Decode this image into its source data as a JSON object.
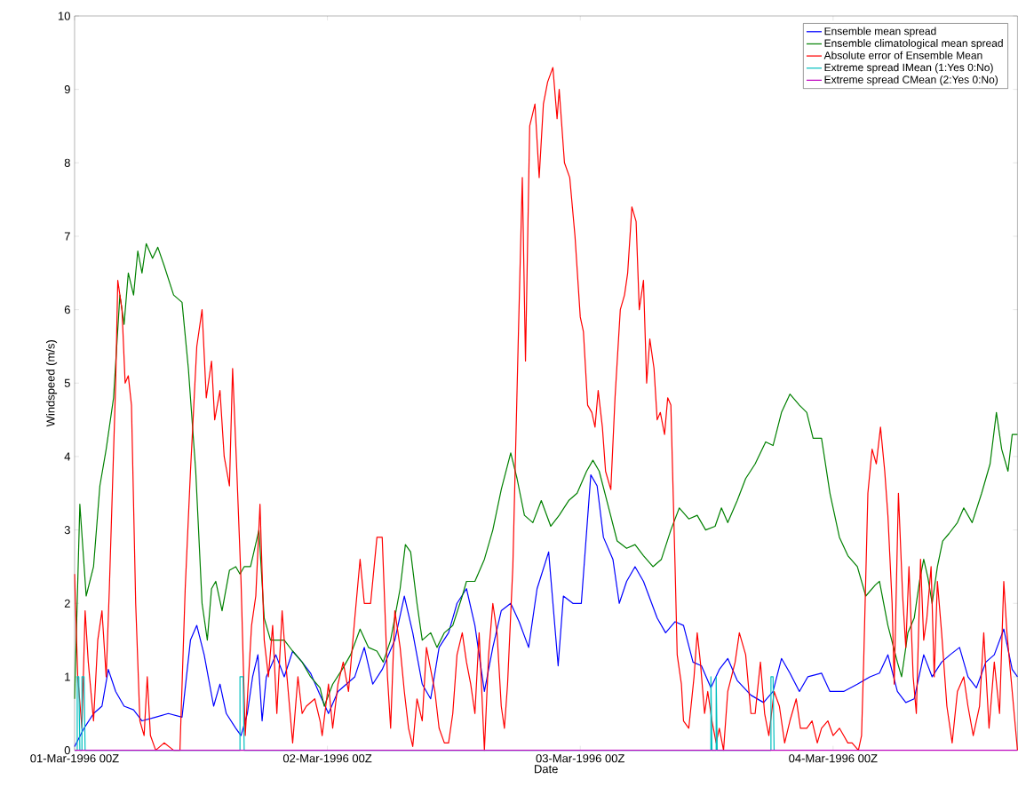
{
  "chart_data": {
    "type": "line",
    "xlabel": "Date",
    "ylabel": "Windspeed (m/s)",
    "legend": "top right",
    "line_style": "solid",
    "xlim": [
      "1996-03-01T00:00",
      "1996-03-04T17:30"
    ],
    "ylim": [
      0,
      10
    ],
    "xticks": [
      {
        "value": "1996-03-01T00:00",
        "label": "01-Mar-1996 00Z"
      },
      {
        "value": "1996-03-02T00:00",
        "label": "02-Mar-1996 00Z"
      },
      {
        "value": "1996-03-03T00:00",
        "label": "03-Mar-1996 00Z"
      },
      {
        "value": "1996-03-04T00:00",
        "label": "04-Mar-1996 00Z"
      }
    ],
    "yticks": [
      0,
      1,
      2,
      3,
      4,
      5,
      6,
      7,
      8,
      9,
      10
    ],
    "series": [
      {
        "name": "Ensemble mean spread",
        "color": "#0000ff",
        "x": [
          "1996-03-01T00:00",
          "1996-03-01T00:54",
          "1996-03-01T01:48",
          "1996-03-01T02:36",
          "1996-03-01T03:12",
          "1996-03-01T03:54",
          "1996-03-01T04:42",
          "1996-03-01T05:36",
          "1996-03-01T06:24",
          "1996-03-01T07:42",
          "1996-03-01T08:54",
          "1996-03-01T10:12",
          "1996-03-01T11:00",
          "1996-03-01T11:36",
          "1996-03-01T12:18",
          "1996-03-01T13:12",
          "1996-03-01T13:48",
          "1996-03-01T14:24",
          "1996-03-01T15:18",
          "1996-03-01T15:48",
          "1996-03-01T16:24",
          "1996-03-01T16:54",
          "1996-03-01T17:24",
          "1996-03-01T17:48",
          "1996-03-01T18:12",
          "1996-03-01T19:06",
          "1996-03-01T19:54",
          "1996-03-01T20:42",
          "1996-03-01T21:36",
          "1996-03-01T22:24",
          "1996-03-01T23:18",
          "1996-03-02T00:06",
          "1996-03-02T01:00",
          "1996-03-02T01:48",
          "1996-03-02T02:36",
          "1996-03-02T03:30",
          "1996-03-02T04:18",
          "1996-03-02T05:12",
          "1996-03-02T06:24",
          "1996-03-02T07:18",
          "1996-03-02T08:06",
          "1996-03-02T09:00",
          "1996-03-02T09:48",
          "1996-03-02T10:36",
          "1996-03-02T11:30",
          "1996-03-02T12:18",
          "1996-03-02T13:12",
          "1996-03-02T14:00",
          "1996-03-02T14:54",
          "1996-03-02T15:42",
          "1996-03-02T16:30",
          "1996-03-02T17:24",
          "1996-03-02T18:12",
          "1996-03-02T19:06",
          "1996-03-02T19:54",
          "1996-03-02T21:00",
          "1996-03-02T21:54",
          "1996-03-02T22:24",
          "1996-03-02T23:18",
          "1996-03-03T00:06",
          "1996-03-03T01:00",
          "1996-03-03T01:36",
          "1996-03-03T02:12",
          "1996-03-03T03:06",
          "1996-03-03T03:42",
          "1996-03-03T04:24",
          "1996-03-03T05:12",
          "1996-03-03T06:00",
          "1996-03-03T07:18",
          "1996-03-03T08:06",
          "1996-03-03T09:00",
          "1996-03-03T09:48",
          "1996-03-03T10:42",
          "1996-03-03T11:30",
          "1996-03-03T12:24",
          "1996-03-03T13:12",
          "1996-03-03T14:00",
          "1996-03-03T14:54",
          "1996-03-03T16:12",
          "1996-03-03T17:24",
          "1996-03-03T18:18",
          "1996-03-03T19:06",
          "1996-03-03T19:54",
          "1996-03-03T20:48",
          "1996-03-03T21:36",
          "1996-03-03T22:54",
          "1996-03-03T23:42",
          "1996-03-04T01:00",
          "1996-03-04T02:18",
          "1996-03-04T03:30",
          "1996-03-04T04:24",
          "1996-03-04T05:12",
          "1996-03-04T06:06",
          "1996-03-04T06:54",
          "1996-03-04T07:42",
          "1996-03-04T08:36",
          "1996-03-04T09:24",
          "1996-03-04T10:18",
          "1996-03-04T11:06",
          "1996-03-04T12:00",
          "1996-03-04T12:48",
          "1996-03-04T13:36",
          "1996-03-04T14:30",
          "1996-03-04T15:18",
          "1996-03-04T16:12",
          "1996-03-04T17:00",
          "1996-03-04T17:30"
        ],
        "values": [
          0.05,
          0.3,
          0.5,
          0.6,
          1.1,
          0.8,
          0.6,
          0.55,
          0.4,
          0.45,
          0.5,
          0.45,
          1.5,
          1.7,
          1.3,
          0.6,
          0.9,
          0.5,
          0.3,
          0.2,
          0.5,
          1.0,
          1.3,
          0.4,
          1.0,
          1.3,
          1.0,
          1.35,
          1.2,
          1.05,
          0.75,
          0.5,
          0.8,
          0.9,
          1.0,
          1.4,
          0.9,
          1.1,
          1.5,
          2.1,
          1.6,
          0.9,
          0.7,
          1.4,
          1.6,
          2.0,
          2.2,
          1.7,
          0.8,
          1.4,
          1.9,
          2.0,
          1.75,
          1.4,
          2.2,
          2.7,
          1.15,
          2.1,
          2.0,
          2.0,
          3.75,
          3.6,
          2.9,
          2.6,
          2.0,
          2.3,
          2.5,
          2.3,
          1.8,
          1.6,
          1.75,
          1.7,
          1.2,
          1.15,
          0.85,
          1.1,
          1.25,
          0.95,
          0.75,
          0.65,
          0.8,
          1.25,
          1.05,
          0.8,
          1.0,
          1.05,
          0.8,
          0.8,
          0.9,
          1.0,
          1.05,
          1.3,
          0.8,
          0.65,
          0.7,
          1.3,
          1.0,
          1.2,
          1.3,
          1.4,
          1.0,
          0.85,
          1.2,
          1.3,
          1.65,
          1.1,
          1.0
        ]
      },
      {
        "name": "Ensemble climatological mean spread",
        "color": "#008000",
        "x": [
          "1996-03-01T00:00",
          "1996-03-01T00:30",
          "1996-03-01T01:06",
          "1996-03-01T01:48",
          "1996-03-01T02:24",
          "1996-03-01T03:00",
          "1996-03-01T03:42",
          "1996-03-01T04:18",
          "1996-03-01T04:42",
          "1996-03-01T05:06",
          "1996-03-01T05:36",
          "1996-03-01T06:00",
          "1996-03-01T06:24",
          "1996-03-01T06:48",
          "1996-03-01T07:24",
          "1996-03-01T07:54",
          "1996-03-01T08:30",
          "1996-03-01T09:24",
          "1996-03-01T10:12",
          "1996-03-01T10:48",
          "1996-03-01T11:30",
          "1996-03-01T12:06",
          "1996-03-01T12:36",
          "1996-03-01T13:00",
          "1996-03-01T13:24",
          "1996-03-01T14:00",
          "1996-03-01T14:42",
          "1996-03-01T15:18",
          "1996-03-01T15:42",
          "1996-03-01T16:06",
          "1996-03-01T16:42",
          "1996-03-01T17:30",
          "1996-03-01T18:00",
          "1996-03-01T18:36",
          "1996-03-01T19:54",
          "1996-03-01T20:42",
          "1996-03-01T21:36",
          "1996-03-01T22:24",
          "1996-03-01T23:18",
          "1996-03-01T23:42",
          "1996-03-02T00:30",
          "1996-03-02T01:24",
          "1996-03-02T02:12",
          "1996-03-02T03:06",
          "1996-03-02T03:54",
          "1996-03-02T04:42",
          "1996-03-02T05:18",
          "1996-03-02T06:00",
          "1996-03-02T06:54",
          "1996-03-02T07:24",
          "1996-03-02T07:54",
          "1996-03-02T08:30",
          "1996-03-02T09:00",
          "1996-03-02T09:48",
          "1996-03-02T10:24",
          "1996-03-02T11:06",
          "1996-03-02T11:54",
          "1996-03-02T12:48",
          "1996-03-02T13:12",
          "1996-03-02T14:00",
          "1996-03-02T14:54",
          "1996-03-02T15:42",
          "1996-03-02T16:30",
          "1996-03-02T17:24",
          "1996-03-02T18:00",
          "1996-03-02T18:42",
          "1996-03-02T19:30",
          "1996-03-02T20:18",
          "1996-03-02T21:12",
          "1996-03-02T22:00",
          "1996-03-02T22:54",
          "1996-03-02T23:42",
          "1996-03-03T00:36",
          "1996-03-03T01:12",
          "1996-03-03T01:48",
          "1996-03-03T02:42",
          "1996-03-03T03:30",
          "1996-03-03T04:24",
          "1996-03-03T05:12",
          "1996-03-03T06:00",
          "1996-03-03T06:54",
          "1996-03-03T07:42",
          "1996-03-03T08:36",
          "1996-03-03T09:24",
          "1996-03-03T10:18",
          "1996-03-03T11:06",
          "1996-03-03T11:54",
          "1996-03-03T12:48",
          "1996-03-03T13:24",
          "1996-03-03T14:00",
          "1996-03-03T14:54",
          "1996-03-03T15:42",
          "1996-03-03T16:36",
          "1996-03-03T17:36",
          "1996-03-03T18:18",
          "1996-03-03T19:06",
          "1996-03-03T19:54",
          "1996-03-03T20:48",
          "1996-03-03T21:30",
          "1996-03-03T22:06",
          "1996-03-03T22:54",
          "1996-03-03T23:42",
          "1996-03-04T00:36",
          "1996-03-04T01:24",
          "1996-03-04T02:18",
          "1996-03-04T03:06",
          "1996-03-04T04:00",
          "1996-03-04T04:24",
          "1996-03-04T05:12",
          "1996-03-04T06:06",
          "1996-03-04T06:30",
          "1996-03-04T07:06",
          "1996-03-04T07:42",
          "1996-03-04T08:12",
          "1996-03-04T08:36",
          "1996-03-04T09:00",
          "1996-03-04T09:24",
          "1996-03-04T09:54",
          "1996-03-04T10:24",
          "1996-03-04T11:00",
          "1996-03-04T11:48",
          "1996-03-04T12:24",
          "1996-03-04T13:12",
          "1996-03-04T14:06",
          "1996-03-04T14:54",
          "1996-03-04T15:30",
          "1996-03-04T16:00",
          "1996-03-04T16:36",
          "1996-03-04T17:00",
          "1996-03-04T17:30"
        ],
        "values": [
          0.7,
          3.35,
          2.1,
          2.5,
          3.6,
          4.1,
          4.8,
          6.2,
          5.8,
          6.5,
          6.2,
          6.8,
          6.5,
          6.9,
          6.7,
          6.85,
          6.6,
          6.2,
          6.1,
          5.2,
          3.8,
          2.0,
          1.5,
          2.2,
          2.3,
          1.9,
          2.45,
          2.5,
          2.4,
          2.5,
          2.5,
          3.0,
          1.8,
          1.5,
          1.5,
          1.35,
          1.2,
          1.0,
          0.85,
          0.6,
          0.9,
          1.1,
          1.3,
          1.65,
          1.4,
          1.35,
          1.2,
          1.5,
          2.2,
          2.8,
          2.7,
          2.0,
          1.5,
          1.6,
          1.4,
          1.6,
          1.7,
          2.1,
          2.3,
          2.3,
          2.6,
          3.0,
          3.55,
          4.05,
          3.7,
          3.2,
          3.1,
          3.4,
          3.05,
          3.2,
          3.4,
          3.5,
          3.8,
          3.95,
          3.8,
          3.3,
          2.85,
          2.75,
          2.8,
          2.65,
          2.5,
          2.6,
          3.0,
          3.3,
          3.15,
          3.2,
          3.0,
          3.05,
          3.3,
          3.1,
          3.4,
          3.7,
          3.9,
          4.2,
          4.15,
          4.6,
          4.85,
          4.7,
          4.6,
          4.25,
          4.25,
          3.5,
          2.9,
          2.65,
          2.5,
          2.1,
          2.25,
          2.3,
          1.7,
          1.2,
          1.0,
          1.6,
          1.8,
          2.3,
          2.6,
          2.35,
          2.0,
          2.5,
          2.85,
          2.95,
          3.1,
          3.3,
          3.1,
          3.5,
          3.9,
          4.6,
          4.1,
          3.8,
          4.3,
          4.3
        ]
      },
      {
        "name": "Absolute error of Ensemble Mean",
        "color": "#ff0000",
        "x": [
          "1996-03-01T00:00",
          "1996-03-01T00:18",
          "1996-03-01T00:42",
          "1996-03-01T01:00",
          "1996-03-01T01:18",
          "1996-03-01T01:48",
          "1996-03-01T02:12",
          "1996-03-01T02:36",
          "1996-03-01T03:00",
          "1996-03-01T03:18",
          "1996-03-01T03:54",
          "1996-03-01T04:06",
          "1996-03-01T04:30",
          "1996-03-01T04:48",
          "1996-03-01T05:06",
          "1996-03-01T05:24",
          "1996-03-01T05:48",
          "1996-03-01T06:12",
          "1996-03-01T06:36",
          "1996-03-01T06:54",
          "1996-03-01T07:12",
          "1996-03-01T07:42",
          "1996-03-01T08:30",
          "1996-03-01T09:24",
          "1996-03-01T10:00",
          "1996-03-01T10:30",
          "1996-03-01T11:00",
          "1996-03-01T11:36",
          "1996-03-01T12:06",
          "1996-03-01T12:30",
          "1996-03-01T13:00",
          "1996-03-01T13:18",
          "1996-03-01T13:48",
          "1996-03-01T14:12",
          "1996-03-01T14:42",
          "1996-03-01T15:00",
          "1996-03-01T15:24",
          "1996-03-01T15:48",
          "1996-03-01T16:12",
          "1996-03-01T16:48",
          "1996-03-01T17:12",
          "1996-03-01T17:36",
          "1996-03-01T18:00",
          "1996-03-01T18:24",
          "1996-03-01T18:48",
          "1996-03-01T19:12",
          "1996-03-01T19:42",
          "1996-03-01T20:06",
          "1996-03-01T20:42",
          "1996-03-01T21:12",
          "1996-03-01T21:36",
          "1996-03-01T22:00",
          "1996-03-01T22:48",
          "1996-03-01T23:18",
          "1996-03-01T23:30",
          "1996-03-02T00:06",
          "1996-03-02T00:30",
          "1996-03-02T01:00",
          "1996-03-02T01:30",
          "1996-03-02T02:00",
          "1996-03-02T02:36",
          "1996-03-02T03:06",
          "1996-03-02T03:30",
          "1996-03-02T04:06",
          "1996-03-02T04:42",
          "1996-03-02T05:12",
          "1996-03-02T05:42",
          "1996-03-02T06:00",
          "1996-03-02T06:24",
          "1996-03-02T06:54",
          "1996-03-02T07:18",
          "1996-03-02T07:42",
          "1996-03-02T08:06",
          "1996-03-02T08:30",
          "1996-03-02T09:00",
          "1996-03-02T09:24",
          "1996-03-02T09:48",
          "1996-03-02T10:12",
          "1996-03-02T10:36",
          "1996-03-02T11:06",
          "1996-03-02T11:30",
          "1996-03-02T11:54",
          "1996-03-02T12:18",
          "1996-03-02T12:48",
          "1996-03-02T13:12",
          "1996-03-02T13:36",
          "1996-03-02T14:00",
          "1996-03-02T14:24",
          "1996-03-02T14:54",
          "1996-03-02T15:18",
          "1996-03-02T15:42",
          "1996-03-02T16:06",
          "1996-03-02T16:30",
          "1996-03-02T16:48",
          "1996-03-02T17:06",
          "1996-03-02T17:36",
          "1996-03-02T18:06",
          "1996-03-02T18:30",
          "1996-03-02T18:48",
          "1996-03-02T19:12",
          "1996-03-02T19:42",
          "1996-03-02T20:06",
          "1996-03-02T20:30",
          "1996-03-02T20:54",
          "1996-03-02T21:24",
          "1996-03-02T21:48",
          "1996-03-02T22:00",
          "1996-03-02T22:30",
          "1996-03-02T23:00",
          "1996-03-02T23:30",
          "1996-03-03T00:00",
          "1996-03-03T00:18",
          "1996-03-03T00:42",
          "1996-03-03T01:06",
          "1996-03-03T01:24",
          "1996-03-03T01:42",
          "1996-03-03T02:06",
          "1996-03-03T02:24",
          "1996-03-03T02:54",
          "1996-03-03T03:18",
          "1996-03-03T03:48",
          "1996-03-03T04:12",
          "1996-03-03T04:30",
          "1996-03-03T04:54",
          "1996-03-03T05:18",
          "1996-03-03T05:36",
          "1996-03-03T06:00",
          "1996-03-03T06:18",
          "1996-03-03T06:36",
          "1996-03-03T07:00",
          "1996-03-03T07:18",
          "1996-03-03T07:36",
          "1996-03-03T08:00",
          "1996-03-03T08:18",
          "1996-03-03T08:36",
          "1996-03-03T09:00",
          "1996-03-03T09:12",
          "1996-03-03T09:36",
          "1996-03-03T09:48",
          "1996-03-03T10:18",
          "1996-03-03T10:48",
          "1996-03-03T11:06",
          "1996-03-03T11:24",
          "1996-03-03T11:48",
          "1996-03-03T12:06",
          "1996-03-03T12:30",
          "1996-03-03T12:54",
          "1996-03-03T13:12",
          "1996-03-03T13:36",
          "1996-03-03T14:00",
          "1996-03-03T14:42",
          "1996-03-03T15:06",
          "1996-03-03T15:42",
          "1996-03-03T16:12",
          "1996-03-03T16:36",
          "1996-03-03T17:06",
          "1996-03-03T17:30",
          "1996-03-03T17:54",
          "1996-03-03T18:24",
          "1996-03-03T18:54",
          "1996-03-03T19:24",
          "1996-03-03T19:54",
          "1996-03-03T20:30",
          "1996-03-03T20:54",
          "1996-03-03T21:30",
          "1996-03-03T22:00",
          "1996-03-03T22:30",
          "1996-03-03T22:54",
          "1996-03-03T23:30",
          "1996-03-04T00:00",
          "1996-03-04T00:36",
          "1996-03-04T01:00",
          "1996-03-04T01:24",
          "1996-03-04T01:48",
          "1996-03-04T02:24",
          "1996-03-04T02:42",
          "1996-03-04T02:54",
          "1996-03-04T03:18",
          "1996-03-04T03:42",
          "1996-03-04T04:06",
          "1996-03-04T04:30",
          "1996-03-04T04:54",
          "1996-03-04T05:12",
          "1996-03-04T05:36",
          "1996-03-04T05:48",
          "1996-03-04T06:12",
          "1996-03-04T06:36",
          "1996-03-04T06:54",
          "1996-03-04T07:12",
          "1996-03-04T07:36",
          "1996-03-04T07:54",
          "1996-03-04T08:18",
          "1996-03-04T08:36",
          "1996-03-04T08:54",
          "1996-03-04T09:18",
          "1996-03-04T09:36",
          "1996-03-04T09:54",
          "1996-03-04T10:18",
          "1996-03-04T10:48",
          "1996-03-04T11:18",
          "1996-03-04T11:48",
          "1996-03-04T12:24",
          "1996-03-04T12:48",
          "1996-03-04T13:18",
          "1996-03-04T13:54",
          "1996-03-04T14:18",
          "1996-03-04T14:48",
          "1996-03-04T15:18",
          "1996-03-04T15:48",
          "1996-03-04T16:12",
          "1996-03-04T16:30",
          "1996-03-04T17:00",
          "1996-03-04T17:30"
        ],
        "values": [
          2.4,
          1.0,
          0.3,
          1.9,
          1.2,
          0.4,
          1.5,
          1.9,
          1.0,
          2.2,
          5.0,
          6.4,
          6.0,
          5.0,
          5.1,
          4.7,
          2.0,
          0.4,
          0.2,
          1.0,
          0.2,
          0.0,
          0.1,
          0.0,
          0.0,
          2.2,
          3.8,
          5.5,
          6.0,
          4.8,
          5.3,
          4.5,
          4.9,
          4.0,
          3.6,
          5.2,
          3.8,
          2.3,
          0.2,
          1.7,
          2.1,
          3.35,
          1.5,
          1.0,
          1.7,
          0.5,
          1.9,
          1.1,
          0.1,
          1.0,
          0.5,
          0.6,
          0.7,
          0.4,
          0.2,
          0.9,
          0.3,
          0.9,
          1.2,
          0.8,
          1.8,
          2.6,
          2.0,
          2.0,
          2.9,
          2.9,
          1.0,
          0.3,
          1.9,
          1.4,
          0.8,
          0.3,
          0.05,
          0.7,
          0.4,
          1.4,
          1.1,
          0.8,
          0.3,
          0.1,
          0.1,
          0.5,
          1.3,
          1.6,
          1.2,
          0.9,
          0.5,
          1.6,
          0.0,
          1.3,
          2.0,
          1.6,
          0.6,
          0.3,
          0.9,
          2.5,
          5.5,
          7.8,
          5.3,
          8.5,
          8.8,
          7.8,
          8.8,
          9.1,
          9.3,
          8.6,
          9.0,
          8.0,
          7.8,
          7.0,
          5.9,
          5.7,
          4.7,
          4.6,
          4.4,
          4.9,
          4.4,
          3.8,
          3.55,
          4.8,
          6.0,
          6.2,
          6.5,
          7.4,
          7.2,
          6.0,
          6.4,
          5.0,
          5.6,
          5.2,
          4.5,
          4.6,
          4.3,
          4.8,
          4.7,
          2.5,
          1.3,
          0.9,
          0.4,
          0.3,
          1.0,
          1.6,
          1.2,
          0.5,
          0.8,
          0.4,
          0.1,
          0.3,
          0.0,
          0.8,
          1.2,
          1.6,
          1.3,
          0.5,
          0.5,
          1.2,
          0.5,
          0.2,
          0.8,
          0.6,
          0.1,
          0.4,
          0.7,
          0.3,
          0.3,
          0.4,
          0.1,
          0.3,
          0.4,
          0.2,
          0.3,
          0.2,
          0.1,
          0.1,
          0.0,
          0.2,
          1.2,
          3.5,
          4.1,
          3.9,
          4.4,
          3.8,
          3.2,
          2.0,
          0.9,
          3.5,
          2.1,
          1.4,
          2.5,
          1.0,
          0.5,
          2.6,
          1.5,
          1.8,
          2.5,
          1.0,
          2.3,
          1.6,
          0.6,
          0.1,
          0.8,
          1.0,
          0.6,
          0.2,
          0.6,
          1.6,
          0.3,
          1.2,
          0.5,
          2.3,
          1.6,
          0.8,
          0.0
        ]
      },
      {
        "name": "Extreme spread IMean (1:Yes 0:No)",
        "color": "#00bfbf",
        "x": [
          "1996-03-01T00:00",
          "1996-03-01T00:15",
          "1996-03-01T00:15",
          "1996-03-01T00:24",
          "1996-03-01T00:30",
          "1996-03-01T00:42",
          "1996-03-01T00:42",
          "1996-03-01T00:54",
          "1996-03-01T01:00",
          "1996-03-01T15:42",
          "1996-03-01T15:42",
          "1996-03-01T16:00",
          "1996-03-01T16:06",
          "1996-03-03T12:24",
          "1996-03-03T12:24",
          "1996-03-03T12:30",
          "1996-03-03T12:54",
          "1996-03-03T12:54",
          "1996-03-03T13:00",
          "1996-03-03T18:06",
          "1996-03-03T18:06",
          "1996-03-03T18:18",
          "1996-03-03T18:24"
        ],
        "values": [
          0,
          0,
          1,
          1,
          0,
          0,
          1,
          1,
          0,
          0,
          1,
          1,
          0,
          0,
          1,
          0,
          0,
          1,
          0,
          0,
          1,
          1,
          0
        ]
      },
      {
        "name": "Extreme spread CMean (2:Yes 0:No)",
        "color": "#bf00bf",
        "x": [
          "1996-03-01T00:00",
          "1996-03-04T17:30"
        ],
        "values": [
          0,
          0
        ]
      }
    ]
  }
}
